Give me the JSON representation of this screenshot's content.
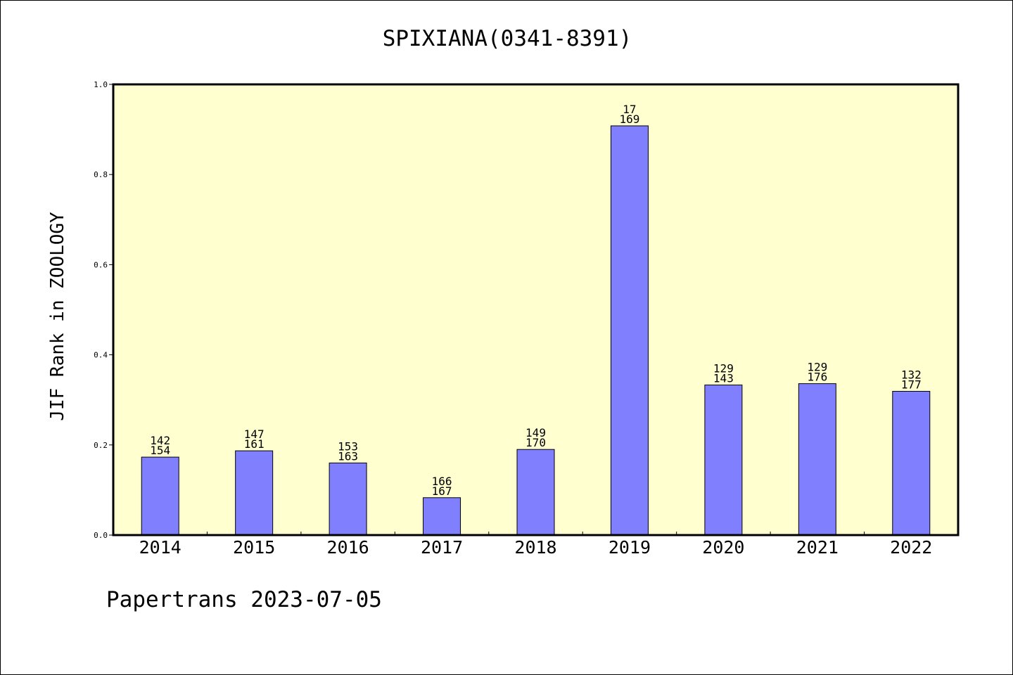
{
  "chart_data": {
    "type": "bar",
    "title": "SPIXIANA(0341-8391)",
    "xlabel": "",
    "ylabel": "JIF Rank in ZOOLOGY",
    "ylim": [
      0,
      1.0
    ],
    "yticks": [
      "0.0",
      "0.2",
      "0.4",
      "0.6",
      "0.8",
      "1.0"
    ],
    "categories": [
      "2014",
      "2015",
      "2016",
      "2017",
      "2018",
      "2019",
      "2020",
      "2021",
      "2022"
    ],
    "values": [
      0.173,
      0.187,
      0.16,
      0.083,
      0.19,
      0.908,
      0.333,
      0.336,
      0.319
    ],
    "rank_labels": [
      [
        "142",
        "154"
      ],
      [
        "147",
        "161"
      ],
      [
        "153",
        "163"
      ],
      [
        "166",
        "167"
      ],
      [
        "149",
        "170"
      ],
      [
        "17",
        "169"
      ],
      [
        "129",
        "143"
      ],
      [
        "129",
        "176"
      ],
      [
        "132",
        "177"
      ]
    ],
    "grid": false,
    "legend": "none"
  },
  "colors": {
    "plot_background": "#ffffd0",
    "bar_fill": "#8080ff",
    "bar_stroke": "#000000"
  },
  "footer": "Papertrans 2023-07-05"
}
